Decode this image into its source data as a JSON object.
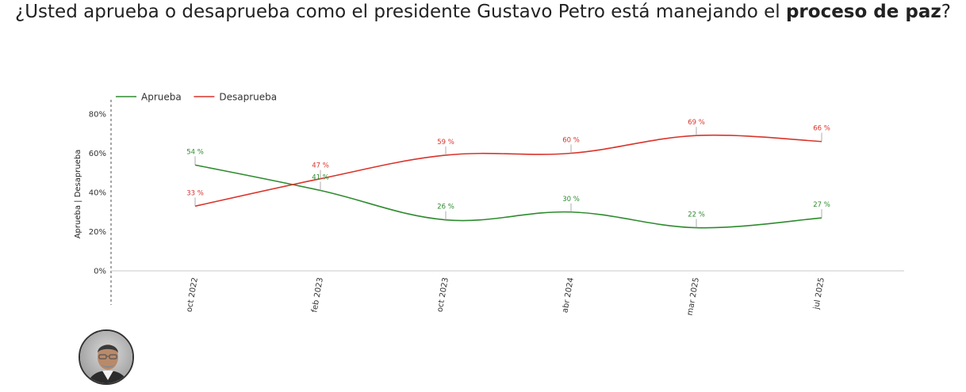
{
  "title": {
    "before": "¿Usted aprueba o desaprueba como el presidente Gustavo Petro está manejando el ",
    "bold": "proceso de paz",
    "after": "?"
  },
  "chart_data": {
    "type": "line",
    "title": "¿Usted aprueba o desaprueba como el presidente Gustavo Petro está manejando el proceso de paz?",
    "ylabel": "Aprueba | Desaprueba",
    "xlabel": "",
    "ylim": [
      0,
      80
    ],
    "yticks": [
      "0%",
      "20%",
      "40%",
      "60%",
      "80%"
    ],
    "categories": [
      "oct 2022",
      "feb 2023",
      "oct 2023",
      "abr 2024",
      "mar 2025",
      "jul 2025"
    ],
    "legend_position": "top-left",
    "grid": false,
    "series": [
      {
        "name": "Aprueba",
        "color": "#2e8b2e",
        "values": [
          54,
          41,
          26,
          30,
          22,
          27
        ],
        "labels": [
          "54 %",
          "41 %",
          "26 %",
          "30 %",
          "22 %",
          "27 %"
        ]
      },
      {
        "name": "Desaprueba",
        "color": "#d9342b",
        "values": [
          33,
          47,
          59,
          60,
          69,
          66
        ],
        "labels": [
          "33 %",
          "47 %",
          "59 %",
          "60 %",
          "69 %",
          "66 %"
        ]
      }
    ]
  },
  "avatar": {
    "icon": "person-portrait-icon"
  }
}
